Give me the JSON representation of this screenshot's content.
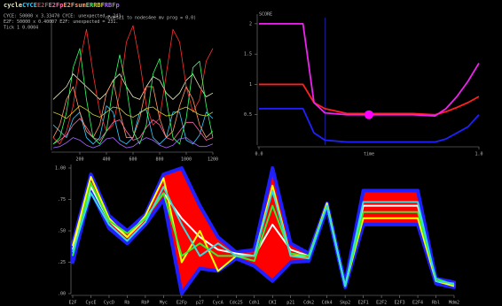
{
  "chart_data": [
    {
      "type": "line",
      "title": "nodes21 to nodes4ee mv prog = 0.0)",
      "header_lines": [
        "CYCE:  50000 x 3.33470  CYCE: unexpected = 241.",
        "E2F:   50000 x 0.40007  E2F: unexpected = 231.",
        "Tick 1 0.0004"
      ],
      "x": [
        0,
        50,
        100,
        150,
        200,
        250,
        300,
        350,
        400,
        450,
        500,
        550,
        600,
        650,
        700,
        750,
        800,
        850,
        900,
        950,
        1000,
        1050,
        1100,
        1150,
        1200
      ],
      "xlim": [
        0,
        1200
      ],
      "xticks": [
        200,
        400,
        600,
        800,
        1000,
        1200
      ],
      "ylim": [
        0,
        1
      ],
      "series": [
        {
          "name": "cycle",
          "color": "#e8e8c0",
          "values": [
            0.4,
            0.45,
            0.5,
            0.6,
            0.55,
            0.5,
            0.45,
            0.4,
            0.45,
            0.55,
            0.6,
            0.5,
            0.42,
            0.4,
            0.5,
            0.58,
            0.55,
            0.45,
            0.4,
            0.45,
            0.55,
            0.6,
            0.5,
            0.42,
            0.45
          ]
        },
        {
          "name": "CYCE",
          "color": "#33ccff",
          "values": [
            0.2,
            0.15,
            0.1,
            0.25,
            0.3,
            0.1,
            0.05,
            0.1,
            0.35,
            0.3,
            0.08,
            0.05,
            0.1,
            0.3,
            0.32,
            0.1,
            0.05,
            0.1,
            0.3,
            0.3,
            0.08,
            0.05,
            0.12,
            0.3,
            0.25
          ]
        },
        {
          "name": "E2F",
          "color": "#ff3030",
          "values": [
            0.1,
            0.05,
            0.15,
            0.35,
            0.7,
            0.95,
            0.6,
            0.3,
            0.15,
            0.2,
            0.45,
            0.85,
            0.98,
            0.7,
            0.35,
            0.2,
            0.25,
            0.6,
            0.95,
            0.85,
            0.5,
            0.3,
            0.4,
            0.7,
            0.8
          ]
        },
        {
          "name": "E2Fp",
          "color": "#ff66aa",
          "values": [
            0.05,
            0.08,
            0.12,
            0.2,
            0.25,
            0.18,
            0.1,
            0.08,
            0.15,
            0.22,
            0.24,
            0.15,
            0.08,
            0.1,
            0.18,
            0.24,
            0.2,
            0.1,
            0.08,
            0.15,
            0.22,
            0.22,
            0.15,
            0.08,
            0.1
          ]
        },
        {
          "name": "E2Fsum",
          "color": "#ff9966",
          "values": [
            0.1,
            0.2,
            0.4,
            0.5,
            0.3,
            0.15,
            0.1,
            0.2,
            0.45,
            0.55,
            0.3,
            0.1,
            0.1,
            0.25,
            0.5,
            0.5,
            0.25,
            0.1,
            0.15,
            0.35,
            0.5,
            0.4,
            0.2,
            0.1,
            0.15
          ]
        },
        {
          "name": "ER",
          "color": "#33ff66",
          "values": [
            0.05,
            0.1,
            0.3,
            0.65,
            0.8,
            0.4,
            0.1,
            0.05,
            0.15,
            0.5,
            0.75,
            0.5,
            0.15,
            0.05,
            0.2,
            0.6,
            0.72,
            0.4,
            0.1,
            0.05,
            0.25,
            0.65,
            0.7,
            0.35,
            0.1
          ]
        },
        {
          "name": "RBF",
          "color": "#cccc33",
          "values": [
            0.3,
            0.28,
            0.25,
            0.3,
            0.35,
            0.32,
            0.28,
            0.26,
            0.3,
            0.34,
            0.33,
            0.28,
            0.26,
            0.29,
            0.33,
            0.34,
            0.3,
            0.27,
            0.28,
            0.32,
            0.34,
            0.31,
            0.28,
            0.27,
            0.3
          ]
        },
        {
          "name": "RBFp",
          "color": "#aa66ff",
          "values": [
            0.02,
            0.03,
            0.06,
            0.1,
            0.08,
            0.04,
            0.02,
            0.04,
            0.09,
            0.1,
            0.05,
            0.02,
            0.03,
            0.07,
            0.1,
            0.08,
            0.04,
            0.02,
            0.04,
            0.09,
            0.1,
            0.06,
            0.03,
            0.03,
            0.05
          ]
        }
      ]
    },
    {
      "type": "line",
      "title": "SCORE",
      "xlabel": "time",
      "x": [
        0,
        0.05,
        0.1,
        0.15,
        0.2,
        0.25,
        0.3,
        0.4,
        0.5,
        0.6,
        0.7,
        0.8,
        0.85,
        0.9,
        0.95,
        1.0
      ],
      "xlim": [
        0,
        1
      ],
      "xticks": [
        {
          "value": 0,
          "label": "0.0"
        },
        {
          "value": 1,
          "label": "1.0"
        }
      ],
      "ylim": [
        0,
        2.1
      ],
      "yticks": [
        0.5,
        1,
        1.5,
        2
      ],
      "vline": 0.3,
      "point": {
        "x": 0.5,
        "y": 0.5,
        "color": "#ff00ff"
      },
      "series": [
        {
          "color": "#ff2020",
          "values": [
            1,
            1,
            1,
            1,
            1,
            0.7,
            0.6,
            0.52,
            0.52,
            0.52,
            0.52,
            0.5,
            0.55,
            0.62,
            0.7,
            0.8
          ]
        },
        {
          "color": "#2020ff",
          "values": [
            0.6,
            0.6,
            0.6,
            0.6,
            0.6,
            0.2,
            0.08,
            0.05,
            0.05,
            0.05,
            0.05,
            0.05,
            0.1,
            0.2,
            0.3,
            0.5
          ]
        },
        {
          "color": "#ee22ee",
          "values": [
            2,
            2,
            2,
            2,
            2,
            0.7,
            0.53,
            0.5,
            0.5,
            0.5,
            0.5,
            0.48,
            0.6,
            0.8,
            1.05,
            1.35
          ]
        }
      ]
    },
    {
      "type": "line",
      "categories": [
        "E2F",
        "CycE",
        "CycD",
        "Rb",
        "RbP",
        "Myc",
        "E2Fp",
        "p27",
        "CycA",
        "Cdc25",
        "Cdh1",
        "CKI",
        "p21",
        "Cdk2",
        "Cdk4",
        "Skp2",
        "E2F1",
        "E2F2",
        "E2F3",
        "E2F4",
        "Rbl",
        "Mdm2"
      ],
      "ylim": [
        0,
        1
      ],
      "yticks": [
        {
          "value": 0,
          "label": ".00"
        },
        {
          "value": 0.25,
          "label": ".25"
        },
        {
          "value": 0.5,
          "label": ".50"
        },
        {
          "value": 0.75,
          "label": ".75"
        },
        {
          "value": 1,
          "label": "1.00"
        }
      ],
      "bands": [
        {
          "color": "#ff0000",
          "edge": "#2020ff",
          "low": [
            0.25,
            0.82,
            0.52,
            0.4,
            0.55,
            0.75,
            0.0,
            0.2,
            0.18,
            0.28,
            0.22,
            0.1,
            0.25,
            0.26,
            0.68,
            0.05,
            0.55,
            0.55,
            0.55,
            0.55,
            0.08,
            0.05
          ],
          "high": [
            0.4,
            0.95,
            0.62,
            0.5,
            0.63,
            0.95,
            1.0,
            0.7,
            0.45,
            0.33,
            0.35,
            1.0,
            0.4,
            0.32,
            0.72,
            0.08,
            0.82,
            0.82,
            0.82,
            0.82,
            0.12,
            0.09
          ]
        }
      ],
      "series": [
        {
          "color": "#ffffff",
          "values": [
            0.35,
            0.85,
            0.58,
            0.45,
            0.6,
            0.8,
            0.6,
            0.45,
            0.35,
            0.32,
            0.3,
            0.55,
            0.35,
            0.3,
            0.7,
            0.06,
            0.7,
            0.7,
            0.7,
            0.7,
            0.1,
            0.07
          ]
        },
        {
          "color": "#ffff00",
          "values": [
            0.38,
            0.93,
            0.6,
            0.45,
            0.62,
            0.92,
            0.25,
            0.5,
            0.18,
            0.3,
            0.3,
            0.86,
            0.3,
            0.3,
            0.72,
            0.06,
            0.6,
            0.6,
            0.6,
            0.6,
            0.1,
            0.06
          ]
        },
        {
          "color": "#33ee33",
          "values": [
            0.3,
            0.88,
            0.58,
            0.48,
            0.6,
            0.8,
            0.3,
            0.4,
            0.3,
            0.3,
            0.26,
            0.7,
            0.32,
            0.3,
            0.7,
            0.06,
            0.65,
            0.65,
            0.65,
            0.65,
            0.12,
            0.07
          ]
        },
        {
          "color": "#33dddd",
          "values": [
            0.33,
            0.8,
            0.55,
            0.42,
            0.57,
            0.85,
            0.55,
            0.3,
            0.4,
            0.3,
            0.3,
            0.82,
            0.3,
            0.28,
            0.7,
            0.06,
            0.73,
            0.73,
            0.73,
            0.73,
            0.1,
            0.08
          ]
        }
      ]
    }
  ]
}
